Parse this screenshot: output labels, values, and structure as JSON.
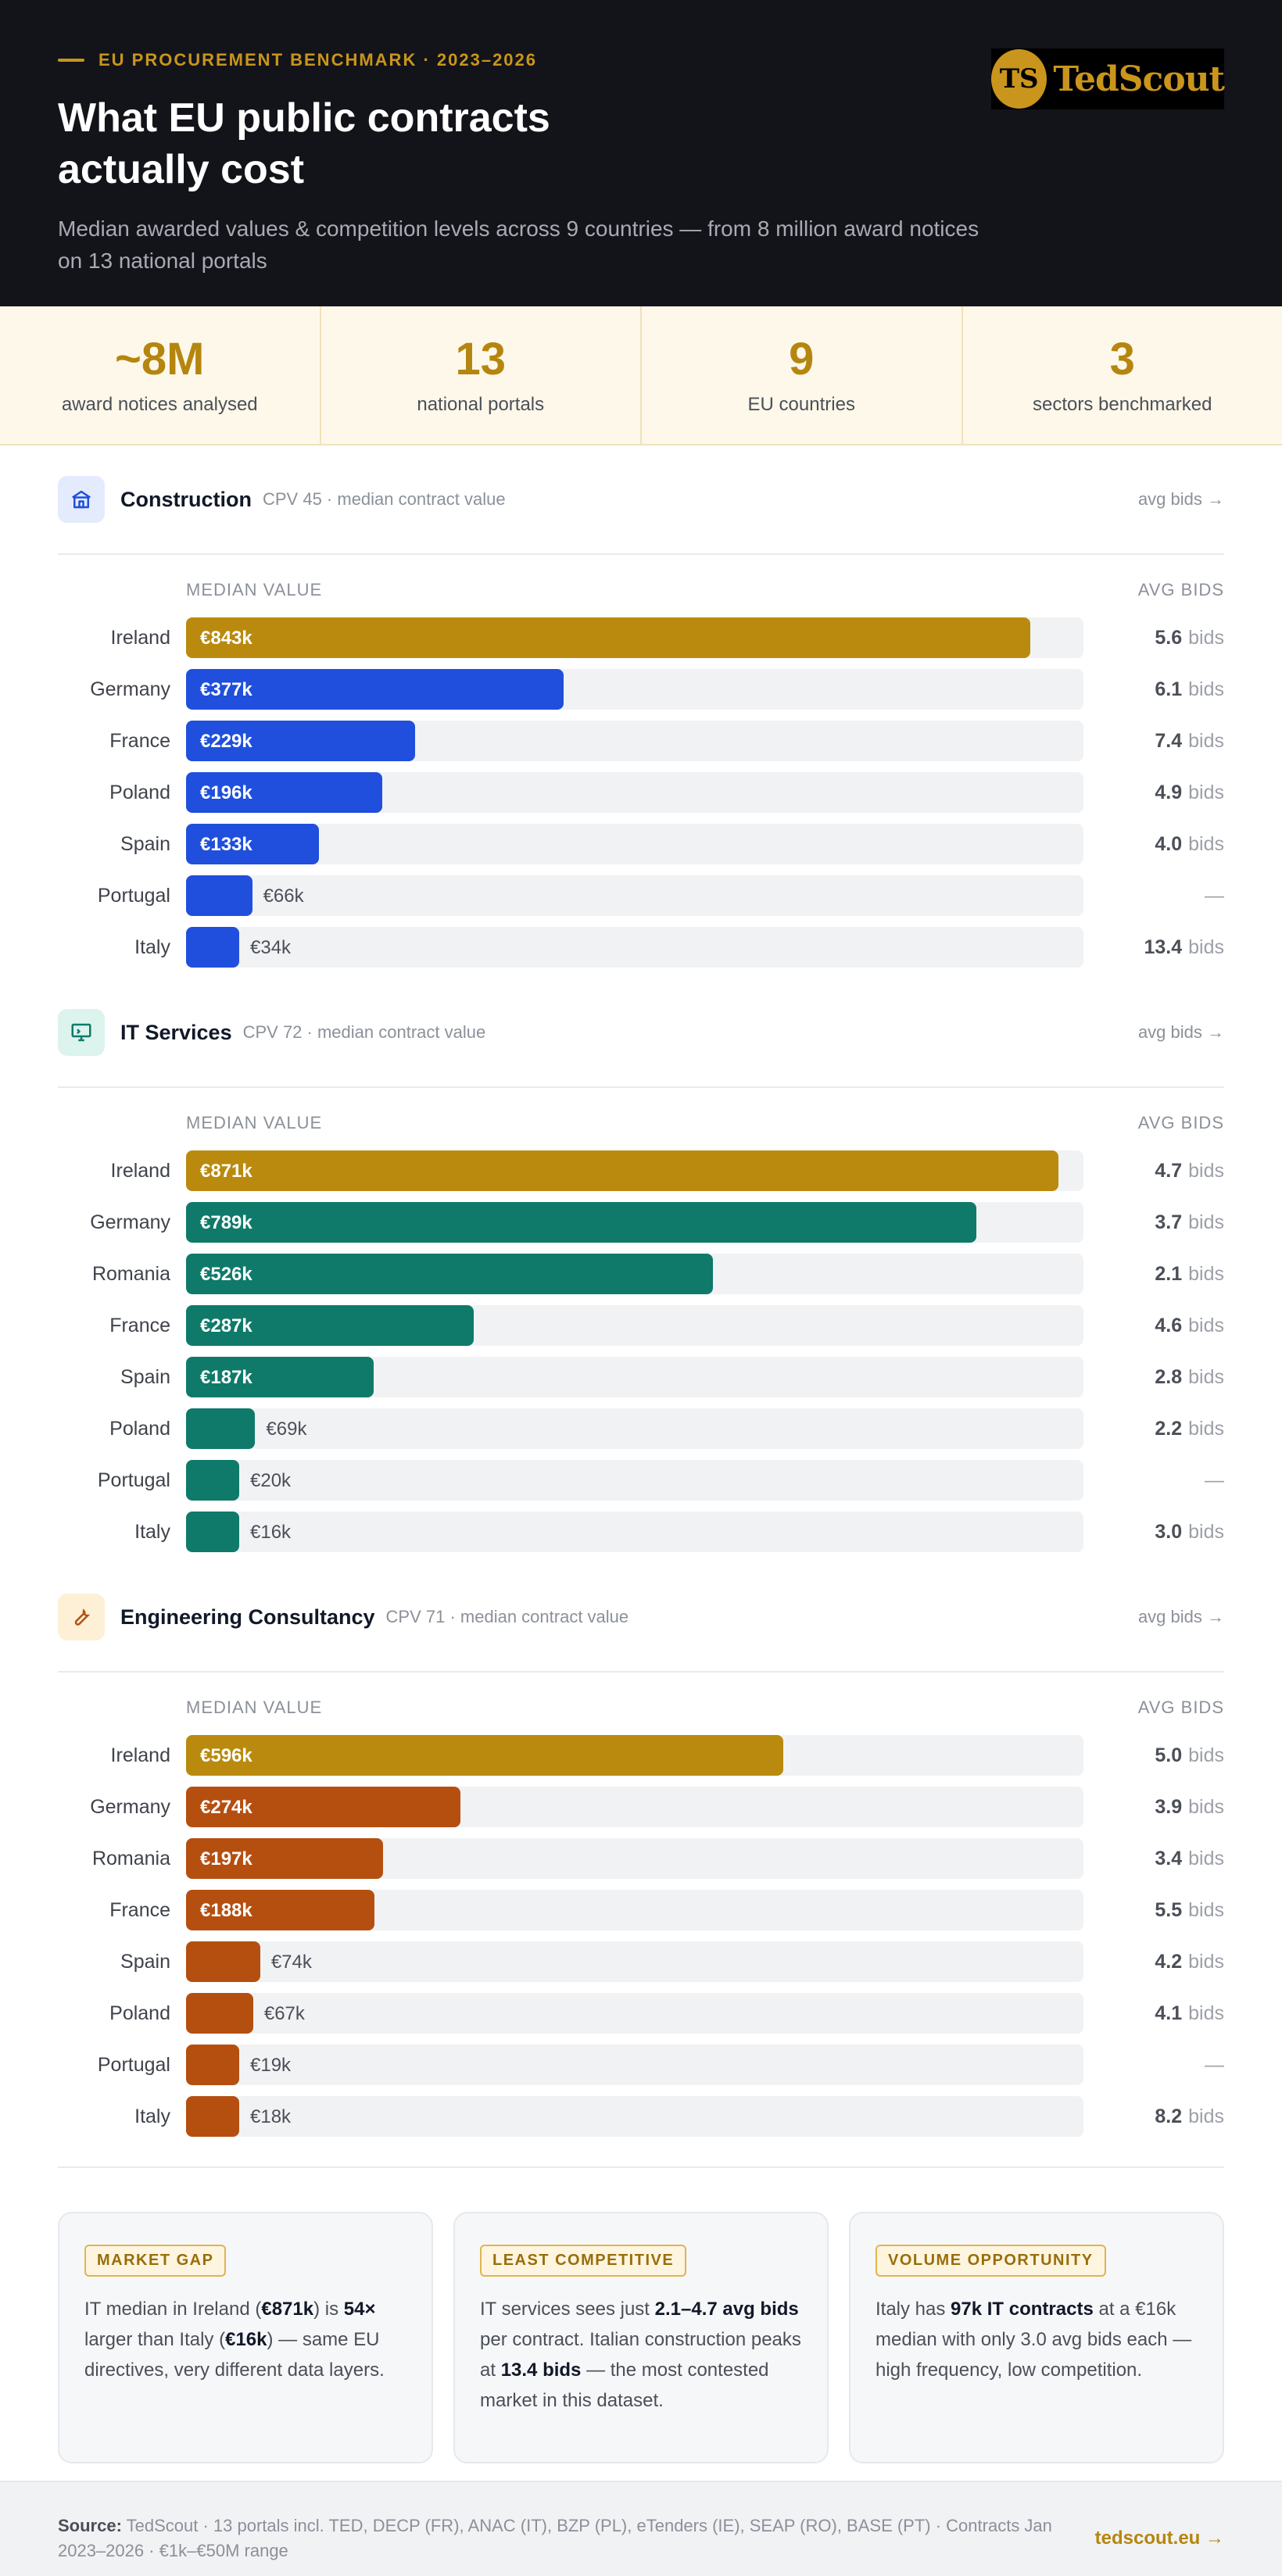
{
  "header": {
    "eyebrow": "EU PROCUREMENT BENCHMARK · 2023–2026",
    "title_line1": "What EU public contracts",
    "title_line2": "actually cost",
    "subtitle": "Median awarded values & competition levels across 9 countries — from 8 million award notices on 13 national portals",
    "logo_mark": "TS",
    "logo_word": "TedScout"
  },
  "stats": [
    {
      "value": "~8M",
      "label": "award notices analysed"
    },
    {
      "value": "13",
      "label": "national portals"
    },
    {
      "value": "9",
      "label": "EU countries"
    },
    {
      "value": "3",
      "label": "sectors benchmarked"
    }
  ],
  "colors": {
    "gold": "#b98a0d",
    "construction": "#1f4fdc",
    "it": "#0f7a6a",
    "engineering": "#b54f10"
  },
  "chart_data": [
    {
      "type": "bar",
      "sector": "Construction",
      "meta": "CPV 45 · median contract value",
      "link": "avg bids →",
      "value_header": "MEDIAN VALUE",
      "bids_header": "AVG BIDS",
      "icon": "building-icon",
      "categories": [
        "Ireland",
        "Germany",
        "France",
        "Poland",
        "Spain",
        "Portugal",
        "Italy"
      ],
      "values": [
        843,
        377,
        229,
        196,
        133,
        66,
        34
      ],
      "value_labels": [
        "€843k",
        "€377k",
        "€229k",
        "€196k",
        "€133k",
        "€66k",
        "€34k"
      ],
      "unit": "€k",
      "avg_bids": [
        "5.6",
        "6.1",
        "7.4",
        "4.9",
        "4.0",
        "—",
        "13.4"
      ],
      "xlim": [
        0,
        896
      ]
    },
    {
      "type": "bar",
      "sector": "IT Services",
      "meta": "CPV 72 · median contract value",
      "link": "avg bids →",
      "value_header": "MEDIAN VALUE",
      "bids_header": "AVG BIDS",
      "icon": "monitor-icon",
      "categories": [
        "Ireland",
        "Germany",
        "Romania",
        "France",
        "Spain",
        "Poland",
        "Portugal",
        "Italy"
      ],
      "values": [
        871,
        789,
        526,
        287,
        187,
        69,
        20,
        16
      ],
      "value_labels": [
        "€871k",
        "€789k",
        "€526k",
        "€287k",
        "€187k",
        "€69k",
        "€20k",
        "€16k"
      ],
      "unit": "€k",
      "avg_bids": [
        "4.7",
        "3.7",
        "2.1",
        "4.6",
        "2.8",
        "2.2",
        "—",
        "3.0"
      ],
      "xlim": [
        0,
        896
      ]
    },
    {
      "type": "bar",
      "sector": "Engineering Consultancy",
      "meta": "CPV 71 · median contract value",
      "link": "avg bids →",
      "value_header": "MEDIAN VALUE",
      "bids_header": "AVG BIDS",
      "icon": "wrench-icon",
      "categories": [
        "Ireland",
        "Germany",
        "Romania",
        "France",
        "Spain",
        "Poland",
        "Portugal",
        "Italy"
      ],
      "values": [
        596,
        274,
        197,
        188,
        74,
        67,
        19,
        18
      ],
      "value_labels": [
        "€596k",
        "€274k",
        "€197k",
        "€188k",
        "€74k",
        "€67k",
        "€19k",
        "€18k"
      ],
      "unit": "€k",
      "avg_bids": [
        "5.0",
        "3.9",
        "3.4",
        "5.5",
        "4.2",
        "4.1",
        "—",
        "8.2"
      ],
      "xlim": [
        0,
        896
      ]
    }
  ],
  "bids_suffix": "bids",
  "cards": [
    {
      "tag": "MARKET GAP",
      "parts": [
        {
          "t": "IT median in Ireland (",
          "b": false
        },
        {
          "t": "€871k",
          "b": true
        },
        {
          "t": ") is ",
          "b": false
        },
        {
          "t": "54×",
          "b": true
        },
        {
          "t": " larger than Italy (",
          "b": false
        },
        {
          "t": "€16k",
          "b": true
        },
        {
          "t": ") — same EU directives, very different data layers.",
          "b": false
        }
      ]
    },
    {
      "tag": "LEAST COMPETITIVE",
      "parts": [
        {
          "t": "IT services sees just ",
          "b": false
        },
        {
          "t": "2.1–4.7 avg bids",
          "b": true
        },
        {
          "t": " per contract. Italian construction peaks at ",
          "b": false
        },
        {
          "t": "13.4 bids",
          "b": true
        },
        {
          "t": " — the most contested market in this dataset.",
          "b": false
        }
      ]
    },
    {
      "tag": "VOLUME OPPORTUNITY",
      "parts": [
        {
          "t": "Italy has ",
          "b": false
        },
        {
          "t": "97k IT contracts",
          "b": true
        },
        {
          "t": " at a €16k median with only 3.0 avg bids each — high frequency, low competition.",
          "b": false
        }
      ]
    }
  ],
  "footer": {
    "source_label": "Source:",
    "source_text": " TedScout · 13 portals incl. TED, DECP (FR), ANAC (IT), BZP (PL), eTenders (IE), SEAP (RO), BASE (PT) · Contracts Jan 2023–2026 · €1k–€50M range",
    "url": "tedscout.eu →"
  }
}
